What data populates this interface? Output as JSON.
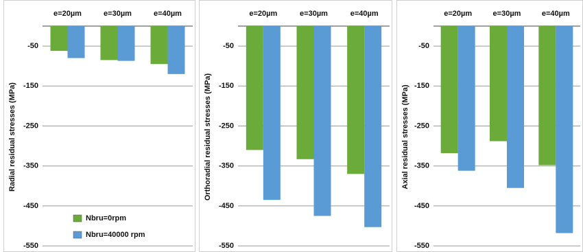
{
  "chart_data": [
    {
      "type": "bar",
      "ylabel": "Radial residual stresses (MPa)",
      "categories": [
        "e=20µm",
        "e=30µm",
        "e=40µm"
      ],
      "series": [
        {
          "name": "Nbru=0rpm",
          "color": "#6aab3a",
          "values": [
            -62,
            -85,
            -95
          ]
        },
        {
          "name": "Nbru=40000 rpm",
          "color": "#5b9bd5",
          "values": [
            -80,
            -87,
            -120
          ]
        }
      ],
      "ylim": [
        -555,
        0
      ],
      "yticks": [
        -50,
        -150,
        -250,
        -350,
        -450,
        -550
      ],
      "grid": true,
      "legend": "lower center"
    },
    {
      "type": "bar",
      "ylabel": "Orthoradial residual stresses (MPa)",
      "categories": [
        "e=20µm",
        "e=30µm",
        "e=40µm"
      ],
      "series": [
        {
          "color": "#6aab3a",
          "values": [
            -310,
            -333,
            -370
          ]
        },
        {
          "color": "#5b9bd5",
          "values": [
            -435,
            -475,
            -503
          ]
        }
      ],
      "ylim": [
        -555,
        0
      ],
      "yticks": [
        -50,
        -150,
        -250,
        -350,
        -450,
        -550
      ],
      "grid": true
    },
    {
      "type": "bar",
      "ylabel": "Axial residual stresses (MPa)",
      "categories": [
        "e=20µm",
        "e=30µm",
        "e=40µm"
      ],
      "series": [
        {
          "color": "#6aab3a",
          "values": [
            -318,
            -288,
            -348
          ]
        },
        {
          "color": "#5b9bd5",
          "values": [
            -362,
            -405,
            -518
          ]
        }
      ],
      "ylim": [
        -555,
        0
      ],
      "yticks": [
        -50,
        -150,
        -250,
        -350,
        -450,
        -550
      ],
      "grid": true
    }
  ]
}
